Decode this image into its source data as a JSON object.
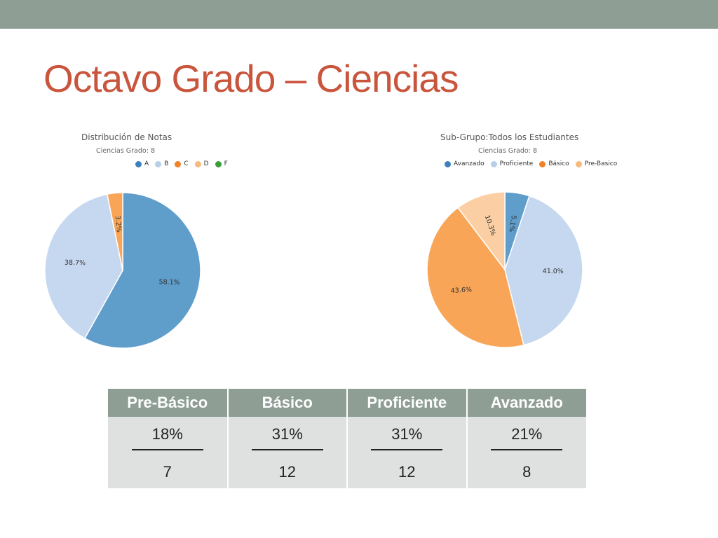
{
  "slide": {
    "title": "Octavo Grado – Ciencias"
  },
  "chart_data": [
    {
      "type": "pie",
      "title": "Distribución de Notas",
      "subtitle": "Ciencias Grado: 8",
      "legend": [
        "A",
        "B",
        "C",
        "D",
        "F"
      ],
      "legend_colors": [
        "#3e7fbd",
        "#b8cde8",
        "#f0822a",
        "#f8b97c",
        "#3a9e3a"
      ],
      "legend_placement": "top",
      "slices": [
        {
          "category": "A",
          "value": 58.1,
          "label": "58.1%",
          "color": "#5f9dcb"
        },
        {
          "category": "B",
          "value": 38.7,
          "label": "38.7%",
          "color": "#c6d8ef"
        },
        {
          "category": "C",
          "value": 3.2,
          "label": "3.2%",
          "color": "#f9a557"
        }
      ]
    },
    {
      "type": "pie",
      "title": "Sub-Grupo:Todos los Estudiantes",
      "subtitle": "Ciencias Grado: 8",
      "legend": [
        "Avanzado",
        "Proficiente",
        "Básico",
        "Pre-Basico"
      ],
      "legend_colors": [
        "#3e7fbd",
        "#b8cde8",
        "#f0822a",
        "#f8b97c"
      ],
      "legend_placement": "top",
      "slices": [
        {
          "category": "Avanzado",
          "value": 5.1,
          "label": "5.1%",
          "color": "#5f9dcb"
        },
        {
          "category": "Proficiente",
          "value": 41.0,
          "label": "41.0%",
          "color": "#c6d8ef"
        },
        {
          "category": "Básico",
          "value": 43.6,
          "label": "43.6%",
          "color": "#f9a557"
        },
        {
          "category": "Pre-Basico",
          "value": 10.3,
          "label": "10.3%",
          "color": "#fbcfa3"
        }
      ]
    }
  ],
  "table": {
    "columns": [
      {
        "header": "Pre-Básico",
        "percent": "18%",
        "count": "7"
      },
      {
        "header": "Básico",
        "percent": "31%",
        "count": "12"
      },
      {
        "header": "Proficiente",
        "percent": "31%",
        "count": "12"
      },
      {
        "header": "Avanzado",
        "percent": "21%",
        "count": "8"
      }
    ]
  }
}
